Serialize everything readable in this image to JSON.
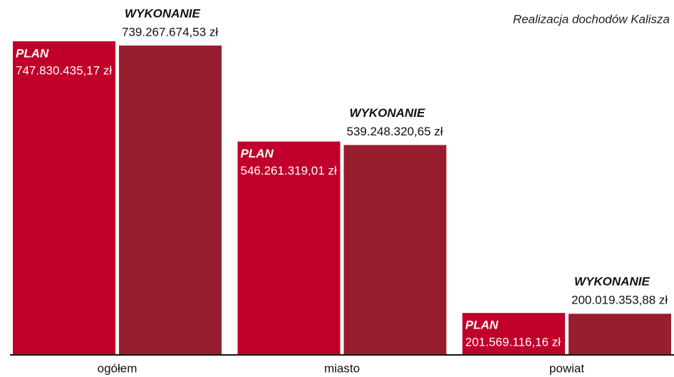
{
  "chart_data": {
    "type": "bar",
    "title": "Realizacja dochodów Kalisza",
    "categories": [
      "ogółem",
      "miasto",
      "powiat"
    ],
    "series": [
      {
        "name": "PLAN",
        "color": "#c0002a",
        "values": [
          747830435.17,
          546261319.01,
          201569116.16
        ],
        "value_labels": [
          "747.830.435,17 zł",
          "546.261.319,01 zł",
          "201.569.116,16 zł"
        ]
      },
      {
        "name": "WYKONANIE",
        "color": "#981d2e",
        "values": [
          739267674.53,
          539248320.65,
          200019353.88
        ],
        "value_labels": [
          "739.267.674,53 zł",
          "539.248.320,65 zł",
          "200.019.353,88 zł"
        ]
      }
    ],
    "ylim": [
      118700000,
      800000000
    ]
  }
}
